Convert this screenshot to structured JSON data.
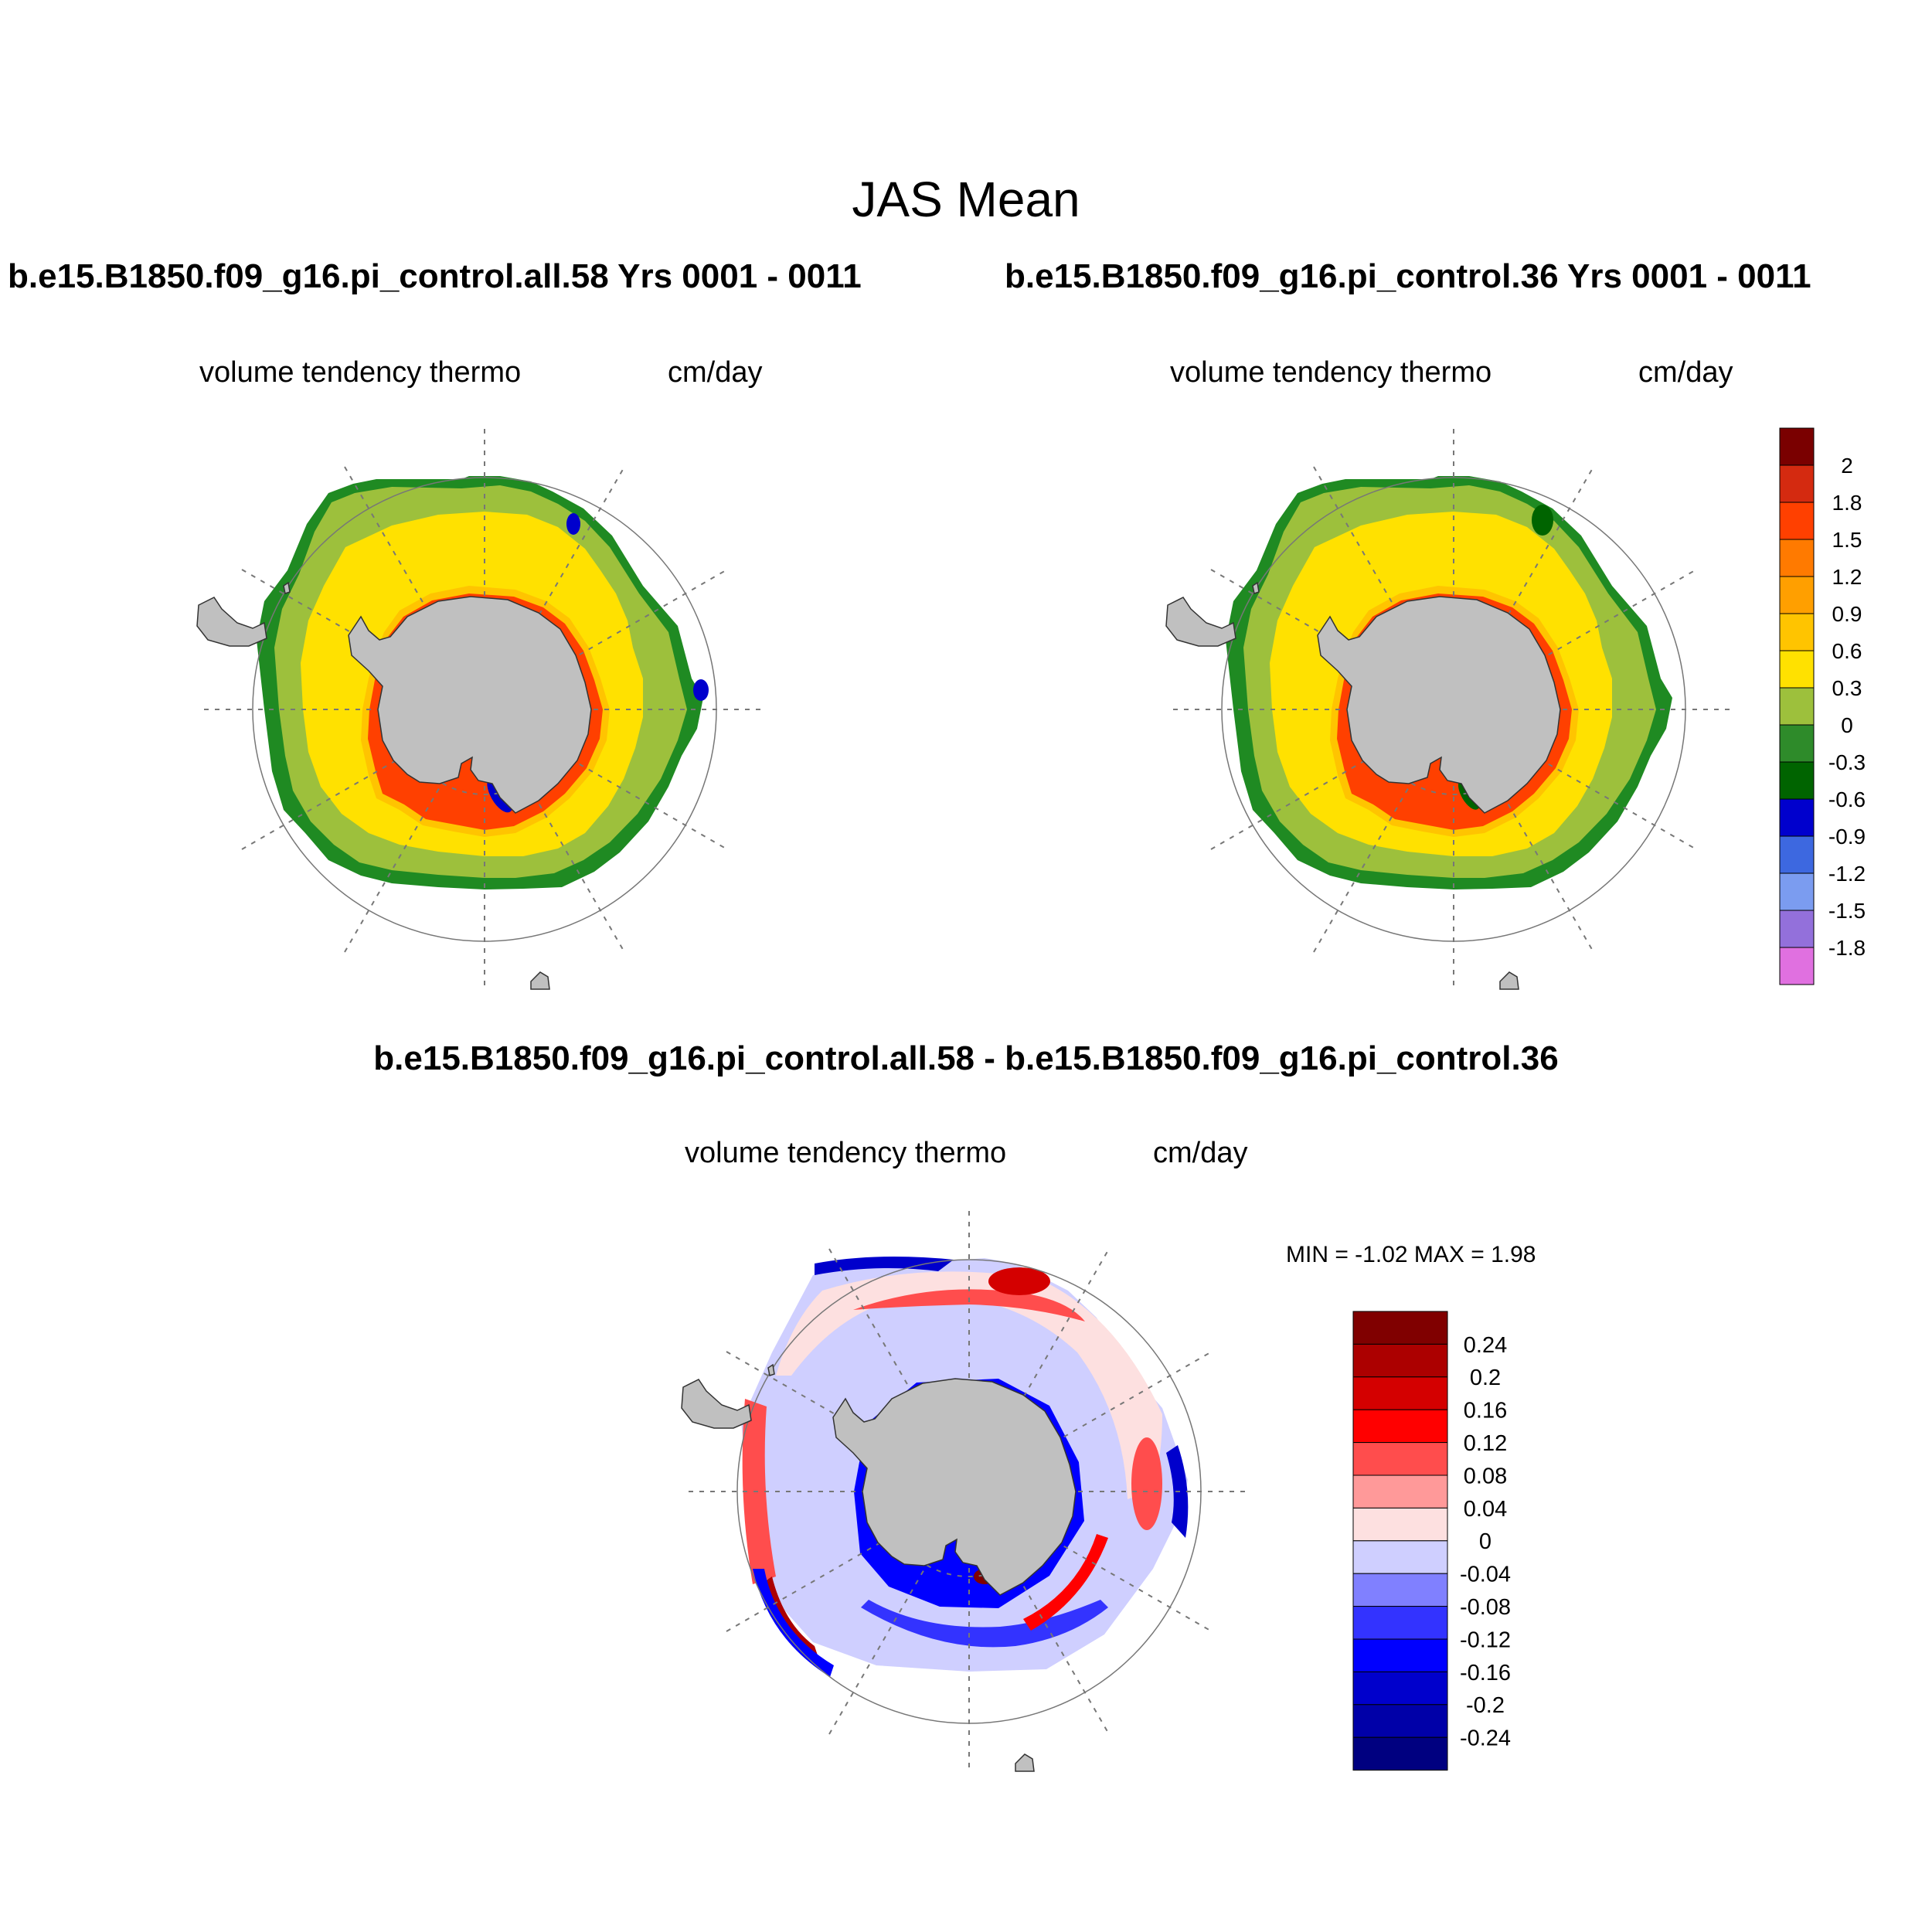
{
  "figure": {
    "title": "JAS Mean",
    "panels": [
      {
        "case_title": "b.e15.B1850.f09_g16.pi_control.all.58  Yrs 0001 - 0011",
        "left_label": "volume tendency thermo",
        "right_label": "cm/day"
      },
      {
        "case_title": "b.e15.B1850.f09_g16.pi_control.36  Yrs 0001 - 0011",
        "left_label": "volume tendency thermo",
        "right_label": "cm/day"
      },
      {
        "case_title": "b.e15.B1850.f09_g16.pi_control.all.58 - b.e15.B1850.f09_g16.pi_control.36",
        "left_label": "volume tendency thermo",
        "right_label": "cm/day",
        "stats": "MIN =  -1.02 MAX =   1.98"
      }
    ]
  },
  "colorbars": {
    "main": {
      "labels": [
        "2",
        "1.8",
        "1.5",
        "1.2",
        "0.9",
        "0.6",
        "0.3",
        "0",
        "-0.3",
        "-0.6",
        "-0.9",
        "-1.2",
        "-1.5",
        "-1.8"
      ],
      "colors": [
        "#7a0000",
        "#d42a10",
        "#ff4000",
        "#ff7a00",
        "#ff9f00",
        "#ffc400",
        "#ffe100",
        "#9dc03c",
        "#2e8b2a",
        "#006400",
        "#0000cd",
        "#3d68e0",
        "#7b9cf0",
        "#9370db",
        "#e070e0"
      ]
    },
    "diff": {
      "labels": [
        "0.24",
        "0.2",
        "0.16",
        "0.12",
        "0.08",
        "0.04",
        "0",
        "-0.04",
        "-0.08",
        "-0.12",
        "-0.16",
        "-0.2",
        "-0.24"
      ],
      "colors": [
        "#800000",
        "#ac0000",
        "#d40000",
        "#ff0000",
        "#ff4d4d",
        "#ff9999",
        "#fde0e0",
        "#cfcfff",
        "#8080ff",
        "#3333ff",
        "#0000ff",
        "#0000cc",
        "#0000a8",
        "#000080"
      ]
    }
  },
  "map": {
    "land_color": "#c0c0c0",
    "grid_style": "dashed",
    "region": "Southern Hemisphere polar stereographic"
  }
}
